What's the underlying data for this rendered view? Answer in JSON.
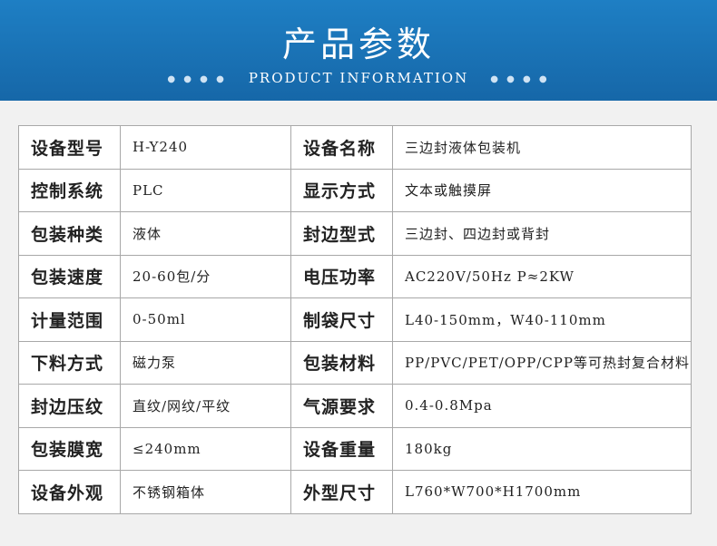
{
  "header": {
    "title": "产品参数",
    "subtitle": "PRODUCT INFORMATION"
  },
  "table": {
    "rows": [
      [
        "设备型号",
        "H-Y240",
        "设备名称",
        "三边封液体包装机"
      ],
      [
        "控制系统",
        "PLC",
        "显示方式",
        "文本或触摸屏"
      ],
      [
        "包装种类",
        "液体",
        "封边型式",
        "三边封、四边封或背封"
      ],
      [
        "包装速度",
        "20-60包/分",
        "电压功率",
        "AC220V/50Hz  P≈2KW"
      ],
      [
        "计量范围",
        "0-50ml",
        "制袋尺寸",
        "L40-150mm，W40-110mm"
      ],
      [
        "下料方式",
        "磁力泵",
        "包装材料",
        "PP/PVC/PET/OPP/CPP等可热封复合材料"
      ],
      [
        "封边压纹",
        "直纹/网纹/平纹",
        "气源要求",
        "0.4-0.8Mpa"
      ],
      [
        "包装膜宽",
        "≤240mm",
        "设备重量",
        "180kg"
      ],
      [
        "设备外观",
        "不锈钢箱体",
        "外型尺寸",
        "L760*W700*H1700mm"
      ]
    ]
  }
}
